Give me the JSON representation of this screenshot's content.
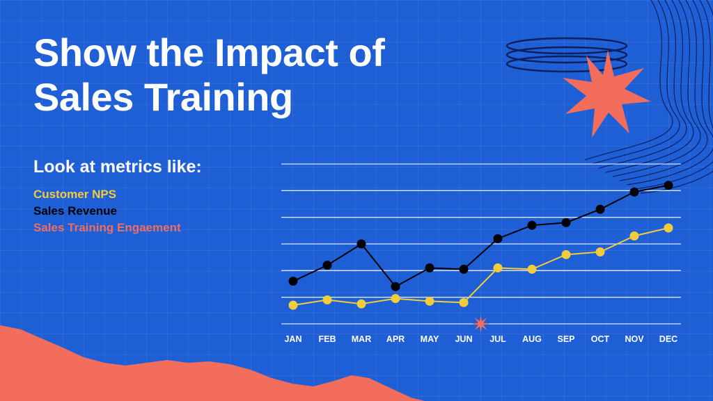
{
  "colors": {
    "background": "#1f5fd6",
    "nps": "#f2cc3a",
    "revenue": "#000000",
    "engagement": "#f26d5b",
    "gridline": "#ffffff"
  },
  "heading": {
    "title": "Show the Impact of Sales Training",
    "subtitle": "Look at metrics like:",
    "metrics": [
      "Customer NPS",
      "Sales Revenue",
      "Sales Training Engaement"
    ]
  },
  "chart_data": {
    "type": "line",
    "categories": [
      "JAN",
      "FEB",
      "MAR",
      "APR",
      "MAY",
      "JUN",
      "JUL",
      "AUG",
      "SEP",
      "OCT",
      "NOV",
      "DEC"
    ],
    "series": [
      {
        "name": "Sales Revenue",
        "color": "#000000",
        "values": [
          1.6,
          2.2,
          3.0,
          1.4,
          2.1,
          2.05,
          3.2,
          3.7,
          3.8,
          4.3,
          4.95,
          5.2
        ]
      },
      {
        "name": "Customer NPS",
        "color": "#f2cc3a",
        "values": [
          0.7,
          0.9,
          0.75,
          0.95,
          0.85,
          0.8,
          2.1,
          2.05,
          2.6,
          2.7,
          3.3,
          3.6
        ]
      }
    ],
    "ylim": [
      0,
      6
    ],
    "grid": true,
    "highlight_category": "JUL",
    "xlabel": "",
    "ylabel": ""
  }
}
